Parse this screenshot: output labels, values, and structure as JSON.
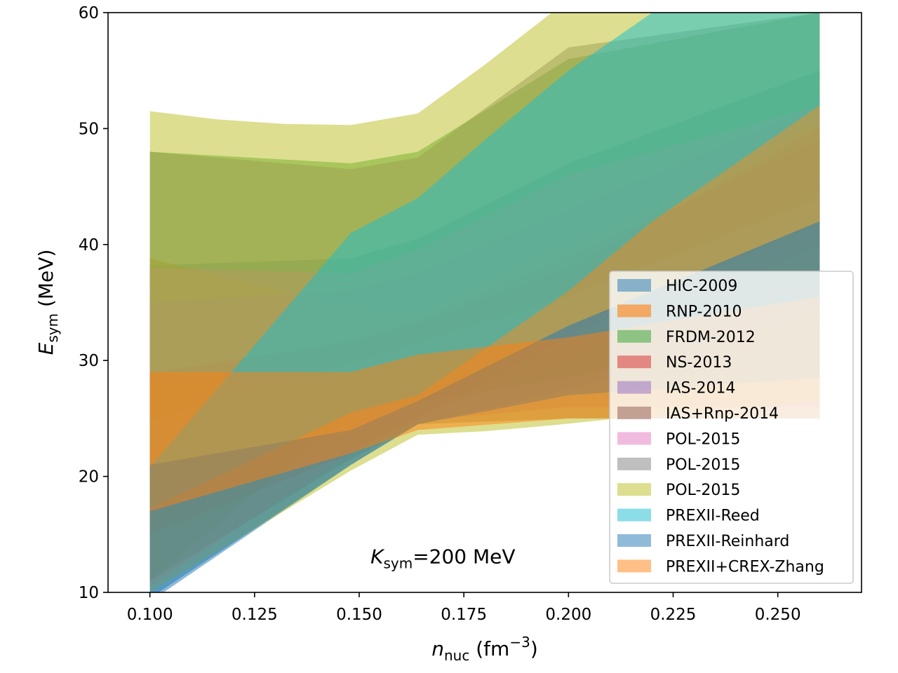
{
  "chart_data": {
    "type": "area",
    "title": "",
    "xlabel": "n",
    "xlabel_sub": "nuc",
    "xlabel_unit": " (fm",
    "xlabel_exp": "−3",
    "xlabel_close": ")",
    "ylabel": "E",
    "ylabel_sub": "sym",
    "ylabel_unit": " (MeV)",
    "xlim": [
      0.09,
      0.27
    ],
    "ylim": [
      10,
      60
    ],
    "x_ticks": [
      0.1,
      0.125,
      0.15,
      0.175,
      0.2,
      0.225,
      0.25
    ],
    "x_tick_labels": [
      "0.100",
      "0.125",
      "0.150",
      "0.175",
      "0.200",
      "0.225",
      "0.250"
    ],
    "y_ticks": [
      10,
      20,
      30,
      40,
      50,
      60
    ],
    "y_tick_labels": [
      "10",
      "20",
      "30",
      "40",
      "50",
      "60"
    ],
    "annotation": {
      "main": "K",
      "sub": "sym",
      "rest": "=200 MeV",
      "x": 0.17,
      "y": 12.5
    },
    "legend_position": "lower-right",
    "series": [
      {
        "name": "HIC-2009",
        "color": "#1f77b4",
        "opacity": 0.5,
        "x": [
          0.1,
          0.148,
          0.164,
          0.2,
          0.26
        ],
        "lower": [
          9.2,
          21.0,
          24.5,
          27.5,
          33.0
        ],
        "upper": [
          38.2,
          38.8,
          40.5,
          47.0,
          55.0
        ]
      },
      {
        "name": "RNP-2010",
        "color": "#ff7f0e",
        "opacity": 0.6,
        "x": [
          0.1,
          0.148,
          0.164,
          0.2,
          0.26
        ],
        "lower": [
          15.5,
          29.5,
          31.5,
          36.0,
          45.0
        ],
        "upper": [
          38.8,
          34.5,
          34.2,
          40.0,
          50.5
        ]
      },
      {
        "name": "FRDM-2012",
        "color": "#2ca02c",
        "opacity": 0.5,
        "x": [
          0.1,
          0.148,
          0.164,
          0.2,
          0.26
        ],
        "lower": [
          11.0,
          25.5,
          26.5,
          28.5,
          34.0
        ],
        "upper": [
          48.0,
          47.0,
          48.0,
          56.0,
          60.0
        ]
      },
      {
        "name": "NS-2013",
        "color": "#d62728",
        "opacity": 0.5,
        "x": [
          0.1,
          0.148,
          0.164,
          0.2,
          0.26
        ],
        "lower": [
          15.0,
          22.0,
          25.0,
          32.0,
          42.0
        ],
        "upper": [
          29.0,
          31.5,
          33.5,
          39.0,
          49.0
        ]
      },
      {
        "name": "IAS-2014",
        "color": "#9467bd",
        "opacity": 0.5,
        "x": [
          0.1,
          0.148,
          0.164,
          0.2,
          0.26
        ],
        "lower": [
          20.8,
          24.0,
          25.2,
          30.0,
          40.0
        ],
        "upper": [
          35.0,
          36.0,
          37.5,
          43.0,
          52.0
        ]
      },
      {
        "name": "IAS+Rnp-2014",
        "color": "#8c564b",
        "opacity": 0.5,
        "x": [
          0.1,
          0.148,
          0.164,
          0.2,
          0.26
        ],
        "lower": [
          24.8,
          29.8,
          31.5,
          35.5,
          44.0
        ],
        "upper": [
          28.8,
          31.8,
          33.2,
          38.0,
          50.0
        ]
      },
      {
        "name": "POL-2015",
        "color": "#e377c2",
        "opacity": 0.5,
        "x": [
          0.1,
          0.148,
          0.164,
          0.2,
          0.26
        ],
        "lower": [
          10.5,
          22.0,
          24.8,
          26.0,
          26.0
        ],
        "upper": [
          38.0,
          37.5,
          39.5,
          46.0,
          52.0
        ]
      },
      {
        "name": "POL-2015",
        "color": "#7f7f7f",
        "opacity": 0.5,
        "x": [
          0.1,
          0.148,
          0.164,
          0.2,
          0.26
        ],
        "lower": [
          11.0,
          21.5,
          24.5,
          25.0,
          25.0
        ],
        "upper": [
          48.0,
          46.5,
          47.5,
          57.0,
          60.0
        ]
      },
      {
        "name": "POL-2015",
        "color": "#bcbd22",
        "opacity": 0.5,
        "x": [
          0.1,
          0.116,
          0.132,
          0.148,
          0.164,
          0.18,
          0.196,
          0.212,
          0.228,
          0.244,
          0.26
        ],
        "lower": [
          10.0,
          13.5,
          17.0,
          20.5,
          23.6,
          23.9,
          24.4,
          25.0,
          25.5,
          26.0,
          26.5
        ],
        "upper": [
          51.5,
          50.8,
          50.4,
          50.3,
          51.3,
          55.5,
          60.0,
          60.0,
          60.0,
          60.0,
          60.0
        ]
      },
      {
        "name": "PREXII-Reed",
        "color": "#17becf",
        "opacity": 0.5,
        "x": [
          0.1,
          0.148,
          0.164,
          0.18,
          0.2,
          0.22,
          0.26
        ],
        "lower": [
          17.2,
          25.5,
          27.0,
          31.0,
          36.0,
          42.0,
          52.0
        ],
        "upper": [
          20.8,
          41.0,
          44.0,
          49.0,
          55.0,
          60.0,
          60.0
        ]
      },
      {
        "name": "PREXII-Reinhard",
        "color": "#1f77b4",
        "opacity": 0.5,
        "x": [
          0.1,
          0.148,
          0.164,
          0.2,
          0.26
        ],
        "lower": [
          9.5,
          21.0,
          24.5,
          27.0,
          28.5
        ],
        "upper": [
          21.0,
          24.0,
          26.5,
          33.0,
          42.0
        ]
      },
      {
        "name": "PREXII+CREX-Zhang",
        "color": "#ff7f0e",
        "opacity": 0.5,
        "x": [
          0.1,
          0.148,
          0.164,
          0.2,
          0.26
        ],
        "lower": [
          17.0,
          22.0,
          24.0,
          25.0,
          25.0
        ],
        "upper": [
          29.0,
          29.0,
          30.5,
          32.0,
          35.5
        ]
      }
    ]
  }
}
